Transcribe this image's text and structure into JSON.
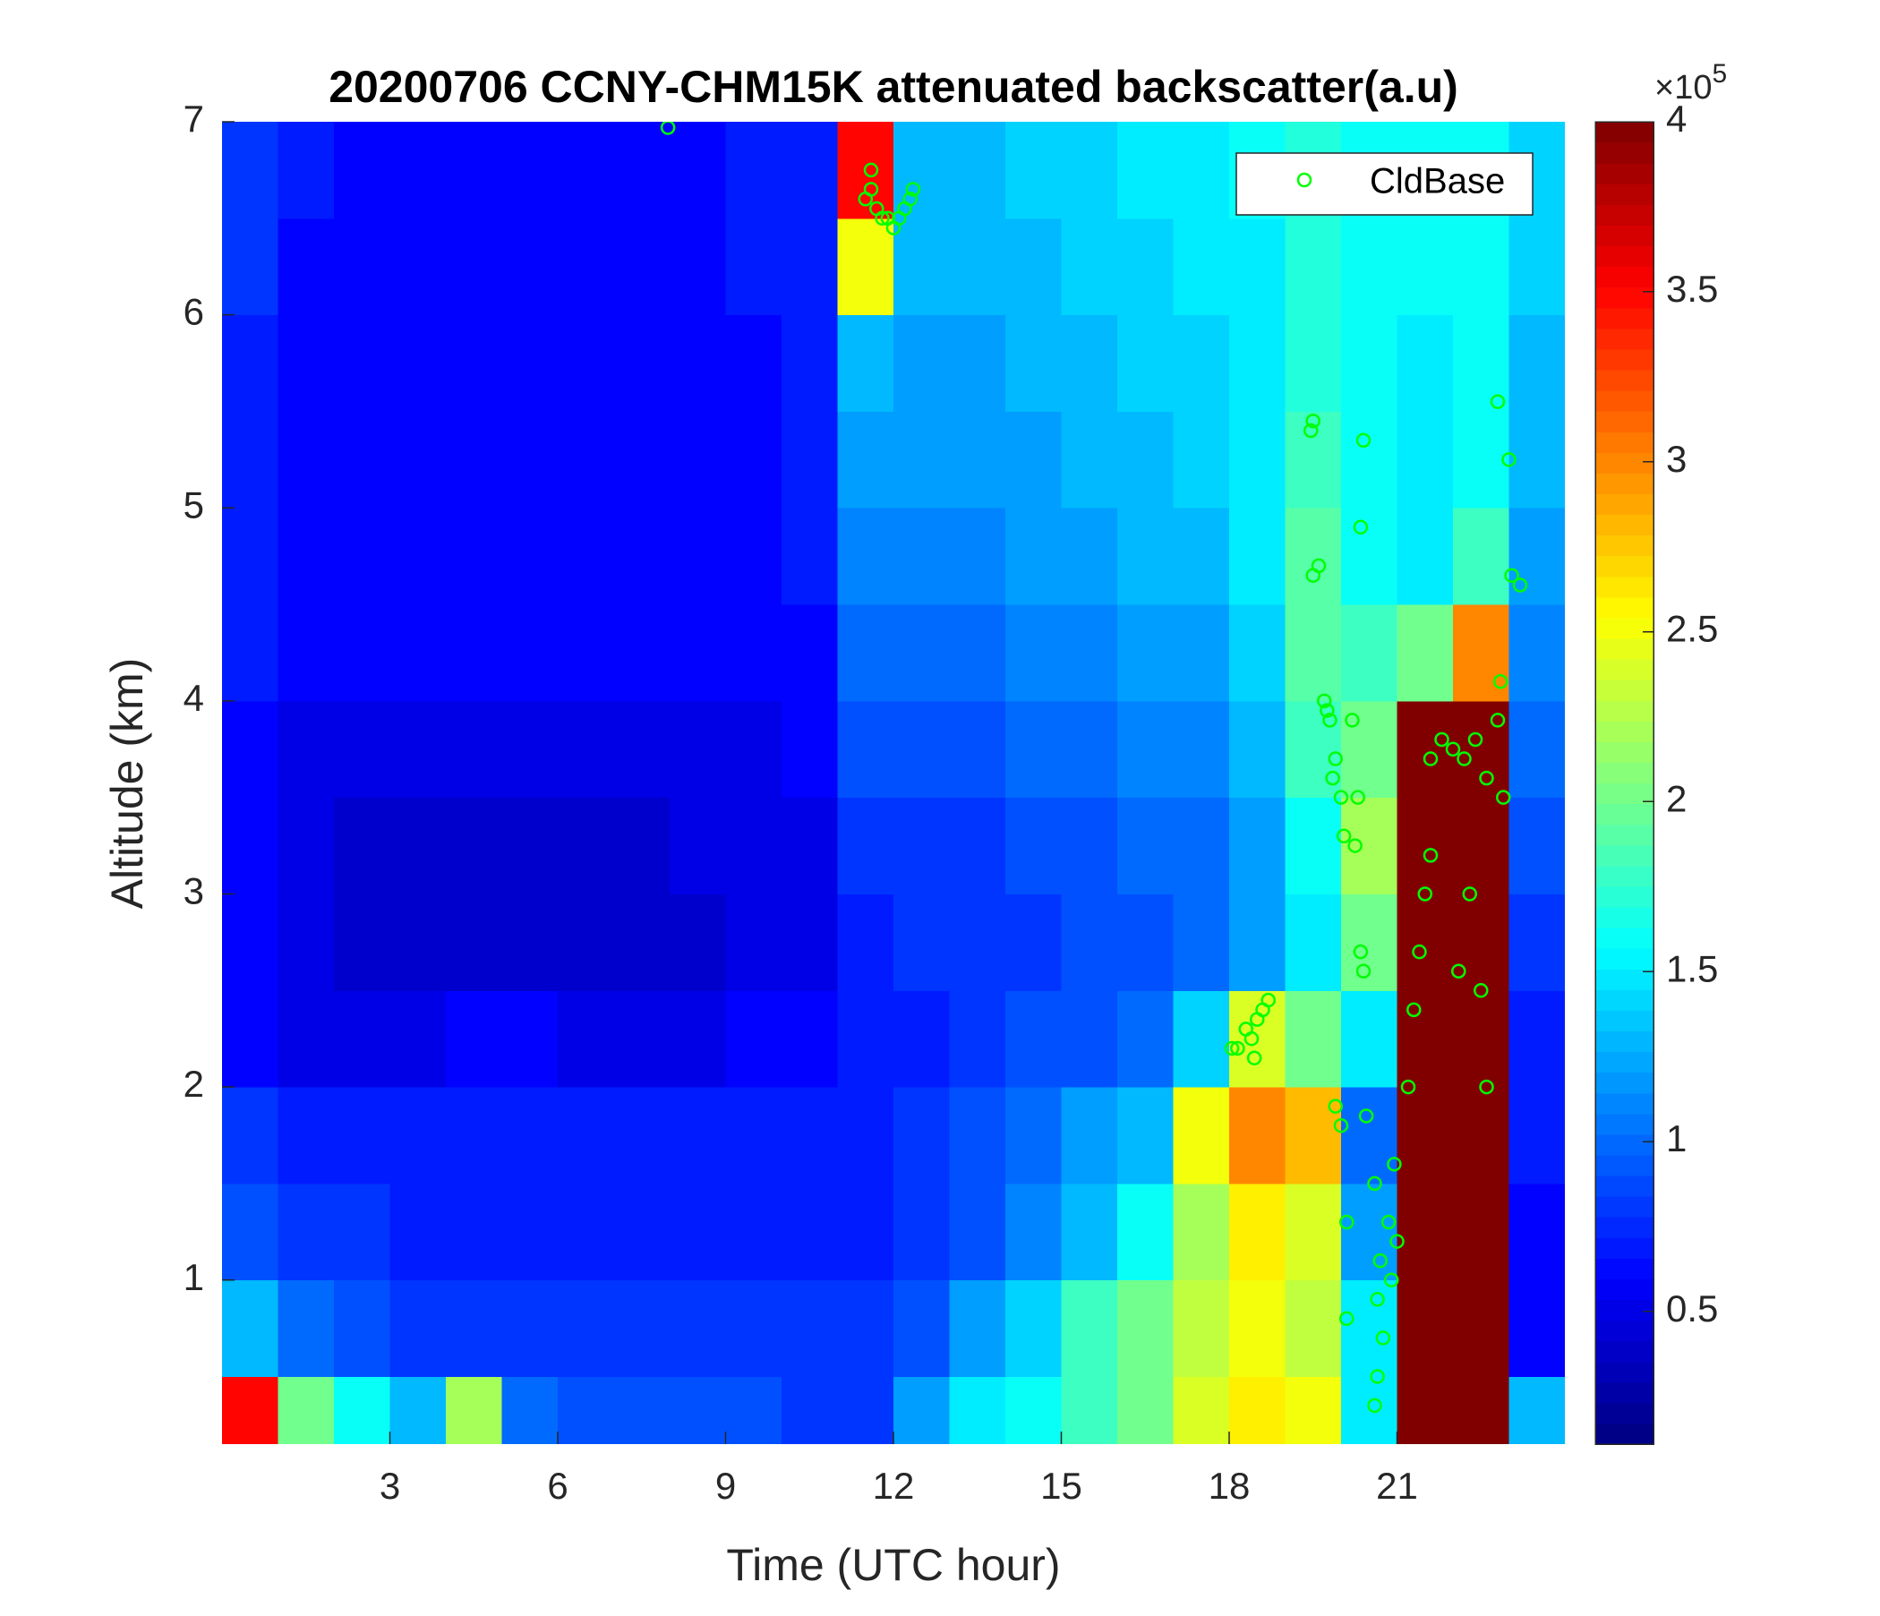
{
  "chart_data": {
    "type": "heatmap",
    "title": "20200706 CCNY-CHM15K attenuated backscatter(a.u)",
    "xlabel": "Time (UTC hour)",
    "ylabel": "Altitude (km)",
    "xlim": [
      0,
      24
    ],
    "xticks": [
      3,
      6,
      9,
      12,
      15,
      18,
      21
    ],
    "ylim": [
      0.15,
      7
    ],
    "yticks": [
      1,
      2,
      3,
      4,
      5,
      6,
      7
    ],
    "colormap": "jet",
    "clim": [
      0.11,
      4
    ],
    "cticks": [
      0.5,
      1,
      1.5,
      2,
      2.5,
      3,
      3.5,
      4
    ],
    "colorbar_base": "×10",
    "colorbar_exponent": "5",
    "legend_position": "upper right",
    "x": [
      0.5,
      1.5,
      2.5,
      3.5,
      4.5,
      5.5,
      6.5,
      7.5,
      8.5,
      9.5,
      10.5,
      11.5,
      12.5,
      13.5,
      14.5,
      15.5,
      16.5,
      17.5,
      18.5,
      19.5,
      20.5,
      21.5,
      22.5,
      23.5
    ],
    "y": [
      0.25,
      0.75,
      1.25,
      1.75,
      2.25,
      2.75,
      3.25,
      3.75,
      4.25,
      4.75,
      5.25,
      5.75,
      6.25,
      6.75
    ],
    "z": [
      [
        3.5,
        2.0,
        1.6,
        1.3,
        2.2,
        1.0,
        0.9,
        0.9,
        0.9,
        0.9,
        0.8,
        0.8,
        1.2,
        1.5,
        1.6,
        1.8,
        2.0,
        2.4,
        2.6,
        2.5,
        1.5,
        4,
        4,
        1.3
      ],
      [
        1.3,
        1.0,
        0.9,
        0.8,
        0.8,
        0.8,
        0.8,
        0.8,
        0.8,
        0.8,
        0.8,
        0.8,
        0.9,
        1.2,
        1.4,
        1.8,
        2.0,
        2.3,
        2.5,
        2.3,
        1.5,
        4,
        4,
        0.6
      ],
      [
        0.9,
        0.8,
        0.8,
        0.7,
        0.7,
        0.7,
        0.7,
        0.7,
        0.7,
        0.7,
        0.7,
        0.7,
        0.8,
        0.9,
        1.1,
        1.3,
        1.6,
        2.2,
        2.6,
        2.4,
        1.2,
        4,
        4,
        0.6
      ],
      [
        0.8,
        0.7,
        0.7,
        0.7,
        0.7,
        0.7,
        0.7,
        0.7,
        0.7,
        0.7,
        0.7,
        0.7,
        0.8,
        0.9,
        1.0,
        1.2,
        1.3,
        2.5,
        3.0,
        2.8,
        1.0,
        4,
        4,
        0.7
      ],
      [
        0.6,
        0.5,
        0.5,
        0.5,
        0.6,
        0.6,
        0.5,
        0.5,
        0.5,
        0.6,
        0.6,
        0.7,
        0.7,
        0.8,
        0.9,
        0.9,
        1.0,
        1.4,
        2.4,
        2.0,
        1.5,
        4,
        4,
        0.7
      ],
      [
        0.6,
        0.5,
        0.4,
        0.4,
        0.4,
        0.4,
        0.4,
        0.4,
        0.4,
        0.5,
        0.5,
        0.7,
        0.8,
        0.8,
        0.8,
        0.9,
        0.9,
        1.0,
        1.2,
        1.5,
        2.0,
        4,
        4,
        0.8
      ],
      [
        0.6,
        0.5,
        0.4,
        0.4,
        0.4,
        0.4,
        0.4,
        0.4,
        0.5,
        0.5,
        0.5,
        0.8,
        0.8,
        0.8,
        0.9,
        0.9,
        1.0,
        1.0,
        1.2,
        1.6,
        2.2,
        4,
        4,
        0.9
      ],
      [
        0.6,
        0.5,
        0.5,
        0.5,
        0.5,
        0.5,
        0.5,
        0.5,
        0.5,
        0.5,
        0.6,
        0.9,
        0.9,
        0.9,
        1.0,
        1.0,
        1.1,
        1.1,
        1.3,
        1.8,
        2.0,
        4,
        4,
        1.0
      ],
      [
        0.7,
        0.6,
        0.6,
        0.6,
        0.6,
        0.6,
        0.6,
        0.6,
        0.6,
        0.6,
        0.6,
        1.0,
        1.0,
        1.0,
        1.1,
        1.1,
        1.2,
        1.2,
        1.4,
        1.9,
        1.8,
        2.0,
        3.0,
        1.1
      ],
      [
        0.7,
        0.6,
        0.6,
        0.6,
        0.6,
        0.6,
        0.6,
        0.6,
        0.6,
        0.6,
        0.7,
        1.1,
        1.1,
        1.1,
        1.2,
        1.2,
        1.3,
        1.3,
        1.5,
        1.9,
        1.6,
        1.5,
        1.8,
        1.2
      ],
      [
        0.7,
        0.6,
        0.6,
        0.6,
        0.6,
        0.6,
        0.6,
        0.6,
        0.6,
        0.6,
        0.7,
        1.2,
        1.2,
        1.2,
        1.2,
        1.3,
        1.3,
        1.4,
        1.5,
        1.8,
        1.6,
        1.5,
        1.6,
        1.3
      ],
      [
        0.7,
        0.6,
        0.6,
        0.6,
        0.6,
        0.6,
        0.6,
        0.6,
        0.6,
        0.6,
        0.7,
        1.3,
        1.2,
        1.2,
        1.3,
        1.3,
        1.4,
        1.4,
        1.5,
        1.7,
        1.6,
        1.5,
        1.6,
        1.3
      ],
      [
        0.8,
        0.6,
        0.6,
        0.6,
        0.6,
        0.6,
        0.6,
        0.6,
        0.6,
        0.7,
        0.7,
        2.5,
        1.3,
        1.3,
        1.3,
        1.4,
        1.4,
        1.5,
        1.5,
        1.7,
        1.6,
        1.6,
        1.6,
        1.4
      ],
      [
        0.8,
        0.7,
        0.6,
        0.6,
        0.6,
        0.6,
        0.6,
        0.6,
        0.6,
        0.7,
        0.7,
        3.5,
        1.3,
        1.3,
        1.4,
        1.4,
        1.5,
        1.5,
        1.6,
        1.7,
        1.6,
        1.6,
        1.6,
        1.4
      ]
    ],
    "series": [
      {
        "name": "CldBase",
        "type": "scatter",
        "color": "#00ff00",
        "x": [
          7.97,
          11.5,
          11.6,
          11.7,
          11.8,
          11.9,
          12.0,
          12.1,
          12.2,
          12.3,
          11.6,
          12.35,
          18.05,
          18.15,
          18.3,
          18.4,
          18.5,
          18.6,
          18.7,
          18.45,
          19.46,
          19.5,
          19.5,
          19.6,
          19.7,
          19.8,
          19.9,
          20.0,
          20.05,
          19.85,
          19.75,
          20.4,
          20.35,
          20.2,
          20.3,
          20.25,
          20.4,
          20.35,
          19.9,
          20.0,
          20.45,
          20.1,
          20.1,
          20.6,
          20.7,
          20.65,
          20.75,
          20.65,
          20.6,
          20.85,
          20.9,
          20.95,
          21.0,
          21.2,
          21.3,
          21.4,
          21.5,
          21.6,
          21.6,
          21.8,
          22.0,
          22.2,
          22.4,
          22.6,
          22.8,
          22.9,
          22.1,
          22.3,
          22.5,
          22.6,
          22.8,
          23.0,
          23.2,
          23.05,
          22.85
        ],
        "y": [
          6.97,
          6.6,
          6.65,
          6.55,
          6.5,
          6.5,
          6.45,
          6.5,
          6.55,
          6.6,
          6.75,
          6.65,
          2.2,
          2.2,
          2.3,
          2.25,
          2.35,
          2.4,
          2.45,
          2.15,
          5.4,
          5.45,
          4.65,
          4.7,
          4.0,
          3.9,
          3.7,
          3.5,
          3.3,
          3.6,
          3.95,
          5.35,
          4.9,
          3.9,
          3.5,
          3.25,
          2.6,
          2.7,
          1.9,
          1.8,
          1.85,
          1.3,
          0.8,
          1.5,
          1.1,
          0.9,
          0.7,
          0.5,
          0.35,
          1.3,
          1.0,
          1.6,
          1.2,
          2.0,
          2.4,
          2.7,
          3.0,
          3.2,
          3.7,
          3.8,
          3.75,
          3.7,
          3.8,
          3.6,
          3.9,
          3.5,
          2.6,
          3.0,
          2.5,
          2.0,
          5.55,
          5.25,
          4.6,
          4.65,
          4.1
        ]
      }
    ]
  }
}
